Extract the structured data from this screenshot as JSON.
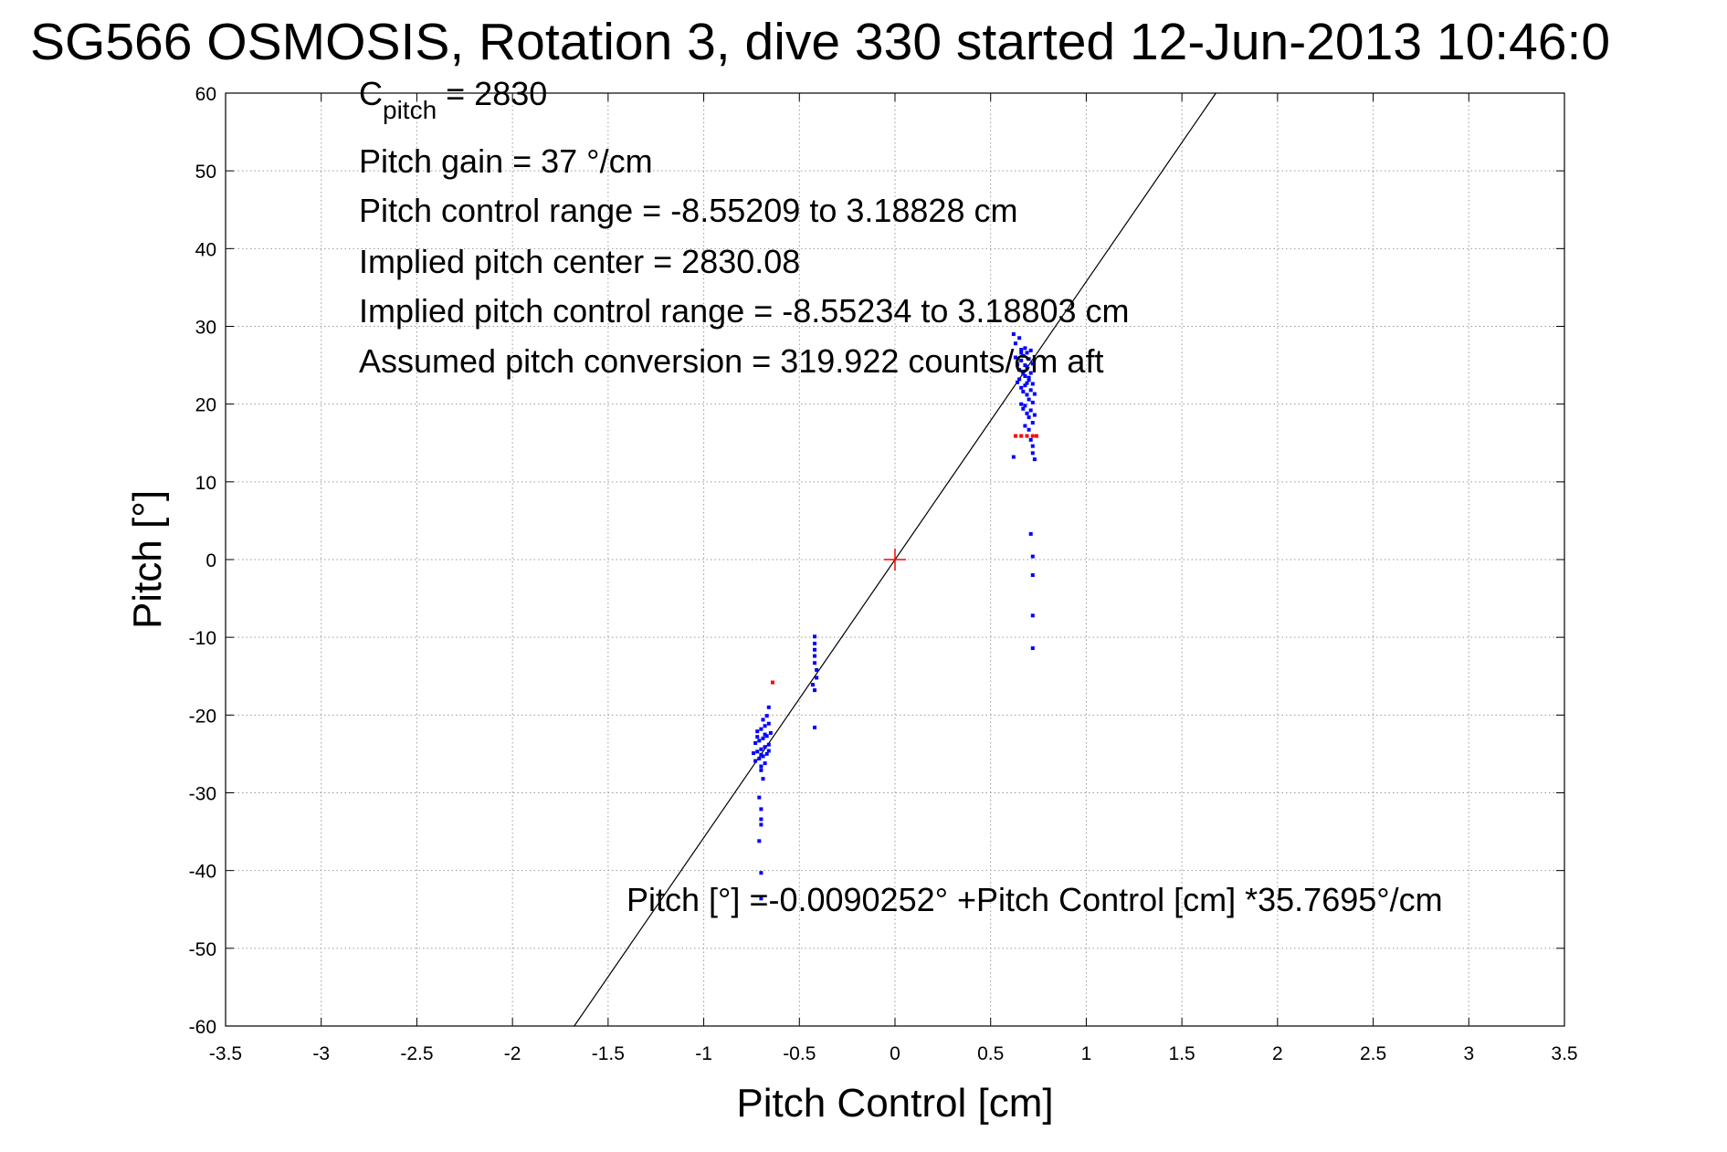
{
  "chart_data": {
    "type": "scatter",
    "title": "SG566 OSMOSIS, Rotation 3, dive 330 started 12-Jun-2013 10:46:0",
    "xlabel": "Pitch Control [cm]",
    "ylabel": "Pitch [°]",
    "xlim": [
      -3.5,
      3.5
    ],
    "ylim": [
      -60,
      60
    ],
    "grid": true,
    "x_ticks": [
      "-3.5",
      "-3",
      "-2.5",
      "-2",
      "-1.5",
      "-1",
      "-0.5",
      "0",
      "0.5",
      "1",
      "1.5",
      "2",
      "2.5",
      "3",
      "3.5"
    ],
    "y_ticks": [
      "60",
      "50",
      "40",
      "30",
      "20",
      "10",
      "0",
      "-10",
      "-20",
      "-30",
      "-40",
      "-50",
      "-60"
    ],
    "annotations": {
      "cpitch_main": "C",
      "cpitch_sub": "pitch",
      "cpitch_value": " = 2830",
      "gain": "Pitch gain = 37 °/cm",
      "range": "Pitch control range = -8.55209 to 3.18828 cm",
      "implied_center": "Implied pitch center = 2830.08",
      "implied_range": "Implied pitch control range = -8.55234 to 3.18803 cm",
      "conversion": "Assumed pitch conversion = 319.922 counts/cm aft",
      "fit_equation": "Pitch [°] =-0.0090252° +Pitch Control [cm] *35.7695°/cm"
    },
    "fit_line": {
      "intercept": -0.0090252,
      "slope": 35.7695,
      "color": "#000000"
    },
    "center_marker": {
      "x": 0,
      "y": 0,
      "color": "#ff0000"
    },
    "series": [
      {
        "color": "#0000ff",
        "points": [
          [
            0.62,
            29
          ],
          [
            0.63,
            27.8
          ],
          [
            0.65,
            28.5
          ],
          [
            0.66,
            27
          ],
          [
            0.67,
            26.2
          ],
          [
            0.68,
            27.2
          ],
          [
            0.69,
            26.6
          ],
          [
            0.7,
            25.8
          ],
          [
            0.71,
            26.9
          ],
          [
            0.72,
            25.2
          ],
          [
            0.63,
            26
          ],
          [
            0.64,
            25.1
          ],
          [
            0.65,
            24.4
          ],
          [
            0.66,
            25.6
          ],
          [
            0.67,
            24.2
          ],
          [
            0.68,
            23.6
          ],
          [
            0.69,
            24.8
          ],
          [
            0.7,
            23.1
          ],
          [
            0.71,
            24
          ],
          [
            0.72,
            22.6
          ],
          [
            0.64,
            22.8
          ],
          [
            0.65,
            23.2
          ],
          [
            0.66,
            22.1
          ],
          [
            0.67,
            21.6
          ],
          [
            0.68,
            22.4
          ],
          [
            0.69,
            21.2
          ],
          [
            0.7,
            20.6
          ],
          [
            0.71,
            21.8
          ],
          [
            0.72,
            20.2
          ],
          [
            0.73,
            21.3
          ],
          [
            0.66,
            20
          ],
          [
            0.67,
            19.4
          ],
          [
            0.68,
            19.8
          ],
          [
            0.69,
            18.8
          ],
          [
            0.7,
            18.3
          ],
          [
            0.71,
            19.2
          ],
          [
            0.72,
            17.6
          ],
          [
            0.73,
            18.6
          ],
          [
            0.68,
            17.2
          ],
          [
            0.7,
            16.7
          ],
          [
            0.71,
            15.4
          ],
          [
            0.72,
            14.6
          ],
          [
            0.72,
            13.7
          ],
          [
            0.73,
            12.9
          ],
          [
            0.62,
            13.2
          ],
          [
            0.7,
            23.4
          ],
          [
            0.68,
            25
          ],
          [
            0.66,
            26.6
          ],
          [
            0.69,
            22.7
          ],
          [
            0.67,
            23.9
          ],
          [
            0.71,
            3.3
          ],
          [
            0.72,
            0.4
          ],
          [
            0.72,
            -2
          ],
          [
            0.72,
            -7.2
          ],
          [
            0.72,
            -11.4
          ],
          [
            -0.42,
            -9.9
          ],
          [
            -0.42,
            -10.8
          ],
          [
            -0.42,
            -11.6
          ],
          [
            -0.42,
            -12.4
          ],
          [
            -0.42,
            -13.3
          ],
          [
            -0.41,
            -14.2
          ],
          [
            -0.41,
            -15.2
          ],
          [
            -0.43,
            -16.1
          ],
          [
            -0.42,
            -16.8
          ],
          [
            -0.42,
            -21.6
          ],
          [
            -0.66,
            -19
          ],
          [
            -0.67,
            -20.1
          ],
          [
            -0.69,
            -20.6
          ],
          [
            -0.66,
            -21.1
          ],
          [
            -0.68,
            -21.4
          ],
          [
            -0.7,
            -21.8
          ],
          [
            -0.72,
            -22.1
          ],
          [
            -0.65,
            -22.3
          ],
          [
            -0.67,
            -22.7
          ],
          [
            -0.69,
            -23
          ],
          [
            -0.71,
            -23.3
          ],
          [
            -0.73,
            -23.6
          ],
          [
            -0.66,
            -23.8
          ],
          [
            -0.68,
            -24.1
          ],
          [
            -0.7,
            -24.4
          ],
          [
            -0.72,
            -24.7
          ],
          [
            -0.67,
            -25
          ],
          [
            -0.69,
            -25.3
          ],
          [
            -0.71,
            -25.6
          ],
          [
            -0.73,
            -25.9
          ],
          [
            -0.68,
            -26.2
          ],
          [
            -0.7,
            -26.6
          ],
          [
            -0.66,
            -24.6
          ],
          [
            -0.72,
            -22.8
          ],
          [
            -0.74,
            -24.9
          ],
          [
            -0.68,
            -22.5
          ],
          [
            -0.7,
            -25.1
          ],
          [
            -0.7,
            -27.1
          ],
          [
            -0.69,
            -28.2
          ],
          [
            -0.71,
            -30.6
          ],
          [
            -0.7,
            -32.1
          ],
          [
            -0.7,
            -33.4
          ],
          [
            -0.7,
            -34.1
          ],
          [
            -0.71,
            -36.2
          ],
          [
            -0.7,
            -40.3
          ],
          [
            -0.7,
            -43.6
          ]
        ]
      },
      {
        "color": "#ff0000",
        "points": [
          [
            0.63,
            15.9
          ],
          [
            0.66,
            15.9
          ],
          [
            0.69,
            15.9
          ],
          [
            0.72,
            15.9
          ],
          [
            0.74,
            15.9
          ],
          [
            -0.64,
            -15.8
          ]
        ]
      }
    ]
  }
}
